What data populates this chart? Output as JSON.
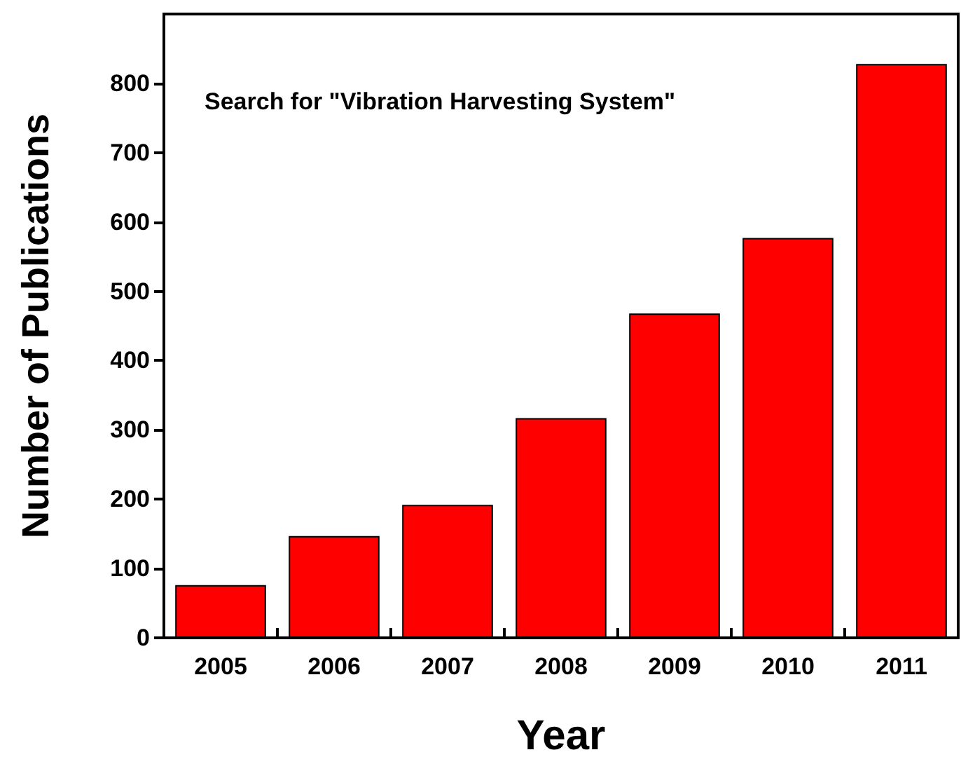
{
  "chart_data": {
    "type": "bar",
    "xlabel": "Year",
    "ylabel": "Number of Publications",
    "categories": [
      "2005",
      "2006",
      "2007",
      "2008",
      "2009",
      "2010",
      "2011"
    ],
    "values": [
      76,
      147,
      192,
      317,
      468,
      577,
      828
    ],
    "color": "#ff0000",
    "ylim": [
      0,
      900
    ],
    "yticks": [
      0,
      100,
      200,
      300,
      400,
      500,
      600,
      700,
      800
    ],
    "grid": false,
    "annotations": [
      "Search for \"Vibration Harvesting System\""
    ]
  }
}
